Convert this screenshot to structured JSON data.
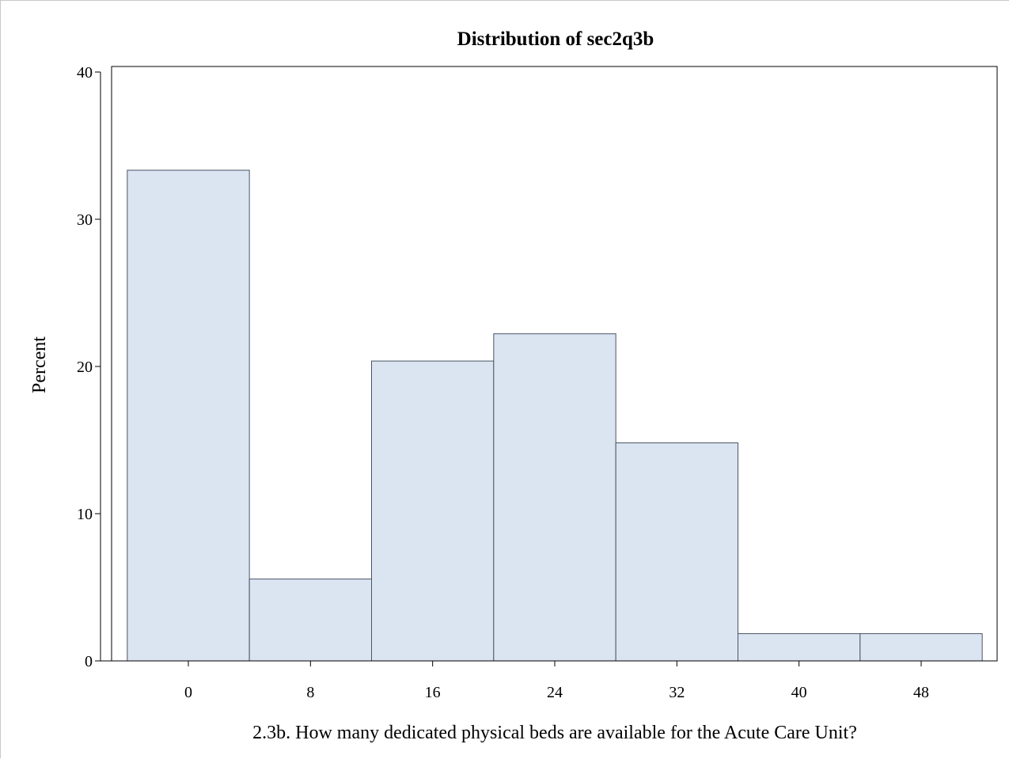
{
  "chart_data": {
    "type": "bar",
    "title": "Distribution of sec2q3b",
    "xlabel": "2.3b. How many dedicated physical beds are available for the Acute Care Unit?",
    "ylabel": "Percent",
    "bin_width": 8,
    "bins": [
      {
        "start": -4,
        "end": 4,
        "value": 33.33
      },
      {
        "start": 4,
        "end": 12,
        "value": 5.56
      },
      {
        "start": 12,
        "end": 20,
        "value": 20.37
      },
      {
        "start": 20,
        "end": 28,
        "value": 22.22
      },
      {
        "start": 28,
        "end": 36,
        "value": 14.81
      },
      {
        "start": 36,
        "end": 44,
        "value": 1.85
      },
      {
        "start": 44,
        "end": 52,
        "value": 1.85
      }
    ],
    "xticks": [
      0,
      8,
      16,
      24,
      32,
      40,
      48
    ],
    "yticks": [
      0,
      10,
      20,
      30,
      40
    ],
    "xlim": [
      -5,
      52
    ],
    "ylim": [
      0,
      40
    ],
    "grid": false,
    "bar_fill": "#dbe4f1",
    "bar_stroke": "#4a5565"
  }
}
